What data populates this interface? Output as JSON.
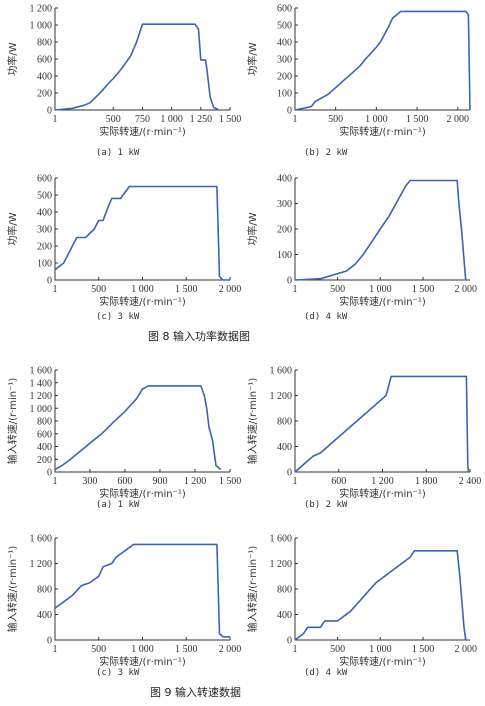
{
  "figures": [
    {
      "caption": "图 8   输入功率数据图"
    },
    {
      "caption": "图 9   输入转速数据"
    }
  ],
  "chart_data": [
    {
      "id": "f8a",
      "type": "line",
      "subcaption": "(a)  1 kW",
      "xlabel": "实际转速/(r·min⁻¹)",
      "ylabel": "功率/W",
      "xlim": [
        1,
        1500
      ],
      "ylim": [
        0,
        1200
      ],
      "xticks": [
        1,
        500,
        750,
        1000,
        1250,
        1500
      ],
      "xtick_labels": [
        "1",
        "500",
        "750",
        "1 000",
        "1 250",
        "1 500"
      ],
      "yticks": [
        0,
        200,
        400,
        600,
        800,
        1000,
        1200
      ],
      "ytick_labels": [
        "0",
        "200",
        "400",
        "600",
        "800",
        "1 000",
        "1 200"
      ],
      "color": "#3a63b8",
      "x": [
        1,
        150,
        250,
        300,
        350,
        400,
        450,
        500,
        550,
        600,
        650,
        700,
        750,
        1200,
        1230,
        1250,
        1290,
        1300,
        1330,
        1360,
        1400
      ],
      "y": [
        0,
        20,
        55,
        85,
        150,
        220,
        300,
        370,
        450,
        540,
        640,
        800,
        1010,
        1010,
        950,
        590,
        590,
        500,
        150,
        30,
        5
      ]
    },
    {
      "id": "f8b",
      "type": "line",
      "subcaption": "(b)  2 kW",
      "xlabel": "实际转速/(r·min⁻¹)",
      "ylabel": "功率/W",
      "xlim": [
        1,
        2150
      ],
      "ylim": [
        0,
        600
      ],
      "xticks": [
        1,
        500,
        1000,
        1500,
        2000
      ],
      "xtick_labels": [
        "1",
        "500",
        "1 000",
        "1 500",
        "2 000"
      ],
      "yticks": [
        0,
        100,
        200,
        300,
        400,
        500,
        600
      ],
      "ytick_labels": [
        "0",
        "100",
        "200",
        "300",
        "400",
        "500",
        "600"
      ],
      "color": "#3a63b8",
      "x": [
        1,
        200,
        250,
        400,
        450,
        600,
        650,
        800,
        850,
        1000,
        1050,
        1150,
        1200,
        1300,
        2100,
        2130,
        2150
      ],
      "y": [
        0,
        20,
        50,
        90,
        110,
        175,
        195,
        260,
        290,
        370,
        400,
        490,
        540,
        580,
        580,
        560,
        0
      ]
    },
    {
      "id": "f8c",
      "type": "line",
      "subcaption": "(c)  3 kW",
      "xlabel": "实际转速/(r·min⁻¹)",
      "ylabel": "功率/W",
      "xlim": [
        1,
        2000
      ],
      "ylim": [
        0,
        600
      ],
      "xticks": [
        1,
        500,
        1000,
        1500,
        2000
      ],
      "xtick_labels": [
        "1",
        "500",
        "1 000",
        "1 500",
        "2 000"
      ],
      "yticks": [
        0,
        100,
        200,
        300,
        400,
        500,
        600
      ],
      "ytick_labels": [
        "0",
        "100",
        "200",
        "300",
        "400",
        "500",
        "600"
      ],
      "color": "#3a63b8",
      "x": [
        1,
        100,
        200,
        250,
        350,
        450,
        500,
        550,
        600,
        650,
        700,
        750,
        850,
        900,
        1850,
        1880,
        1920,
        2000
      ],
      "y": [
        60,
        100,
        200,
        250,
        250,
        300,
        350,
        350,
        420,
        480,
        480,
        480,
        550,
        550,
        550,
        20,
        0,
        0
      ]
    },
    {
      "id": "f8d",
      "type": "line",
      "subcaption": "(d)  4 kW",
      "xlabel": "实际转速/(r·min⁻¹)",
      "ylabel": "功率/W",
      "xlim": [
        1,
        2050
      ],
      "ylim": [
        0,
        400
      ],
      "xticks": [
        1,
        500,
        1000,
        1500,
        2000
      ],
      "xtick_labels": [
        "1",
        "500",
        "1 000",
        "1 500",
        "2 000"
      ],
      "yticks": [
        0,
        100,
        200,
        300,
        400
      ],
      "ytick_labels": [
        "0",
        "100",
        "200",
        "300",
        "400"
      ],
      "color": "#3a63b8",
      "x": [
        1,
        300,
        400,
        500,
        600,
        700,
        800,
        900,
        1000,
        1100,
        1200,
        1300,
        1350,
        1900,
        1920,
        1950,
        2000
      ],
      "y": [
        0,
        5,
        15,
        25,
        35,
        60,
        100,
        150,
        200,
        250,
        310,
        370,
        390,
        390,
        300,
        200,
        0
      ]
    },
    {
      "id": "f9a",
      "type": "line",
      "subcaption": "(a)  1 kW",
      "xlabel": "实际转速/(r·min⁻¹)",
      "ylabel": "输入转速/(r·min⁻¹)",
      "xlim": [
        1,
        1500
      ],
      "ylim": [
        0,
        1600
      ],
      "xticks": [
        1,
        300,
        600,
        900,
        1200,
        1500
      ],
      "xtick_labels": [
        "1",
        "300",
        "600",
        "900",
        "1 200",
        "1 500"
      ],
      "yticks": [
        0,
        200,
        400,
        600,
        800,
        1000,
        1200,
        1400,
        1600
      ],
      "ytick_labels": [
        "0",
        "200",
        "400",
        "600",
        "800",
        "1 000",
        "1 200",
        "1 400",
        "1 600"
      ],
      "color": "#3a63b8",
      "x": [
        1,
        60,
        120,
        200,
        300,
        400,
        500,
        600,
        700,
        750,
        800,
        1250,
        1280,
        1300,
        1320,
        1350,
        1380,
        1420
      ],
      "y": [
        40,
        100,
        180,
        300,
        450,
        600,
        780,
        950,
        1150,
        1300,
        1350,
        1350,
        1200,
        1000,
        700,
        500,
        100,
        40
      ]
    },
    {
      "id": "f9b",
      "type": "line",
      "subcaption": "(b)  2 kW",
      "xlabel": "实际转速/(r·min⁻¹)",
      "ylabel": "输入转速/(r·min⁻¹)",
      "xlim": [
        1,
        2400
      ],
      "ylim": [
        0,
        1600
      ],
      "xticks": [
        1,
        600,
        1200,
        1800,
        2400
      ],
      "xtick_labels": [
        "1",
        "600",
        "1 200",
        "1 800",
        "2 400"
      ],
      "yticks": [
        0,
        400,
        800,
        1200,
        1600
      ],
      "ytick_labels": [
        "0",
        "400",
        "800",
        "1 200",
        "1 600"
      ],
      "color": "#3a63b8",
      "x": [
        1,
        150,
        250,
        350,
        450,
        550,
        650,
        750,
        850,
        950,
        1050,
        1150,
        1250,
        1320,
        2350,
        2370,
        2380
      ],
      "y": [
        0,
        150,
        250,
        300,
        400,
        500,
        600,
        700,
        800,
        900,
        1000,
        1100,
        1200,
        1500,
        1500,
        100,
        0
      ]
    },
    {
      "id": "f9c",
      "type": "line",
      "subcaption": "(c)  3 kW",
      "xlabel": "实际转速/(r·min⁻¹)",
      "ylabel": "输入转速/(r·min⁻¹)",
      "xlim": [
        1,
        2000
      ],
      "ylim": [
        0,
        1600
      ],
      "xticks": [
        1,
        500,
        1000,
        1500,
        2000
      ],
      "xtick_labels": [
        "1",
        "500",
        "1 000",
        "1 500",
        "2 000"
      ],
      "yticks": [
        0,
        400,
        800,
        1200,
        1600
      ],
      "ytick_labels": [
        "0",
        "400",
        "800",
        "1 200",
        "1 600"
      ],
      "color": "#3a63b8",
      "x": [
        1,
        100,
        200,
        300,
        400,
        500,
        550,
        650,
        700,
        800,
        900,
        1850,
        1880,
        1920,
        2000
      ],
      "y": [
        500,
        600,
        700,
        850,
        900,
        1000,
        1150,
        1200,
        1300,
        1400,
        1500,
        1500,
        100,
        50,
        50
      ]
    },
    {
      "id": "f9d",
      "type": "line",
      "subcaption": "(d)  4 kW",
      "xlabel": "实际转速/(r·min⁻¹)",
      "ylabel": "输入转速/(r·min⁻¹)",
      "xlim": [
        1,
        2050
      ],
      "ylim": [
        0,
        1600
      ],
      "xticks": [
        1,
        500,
        1000,
        1500,
        2000
      ],
      "xtick_labels": [
        "1",
        "500",
        "1 000",
        "1 500",
        "2 000"
      ],
      "yticks": [
        0,
        400,
        800,
        1200,
        1600
      ],
      "ytick_labels": [
        "0",
        "400",
        "800",
        "1 200",
        "1 600"
      ],
      "color": "#3a63b8",
      "x": [
        1,
        100,
        150,
        300,
        350,
        500,
        550,
        650,
        750,
        850,
        950,
        1050,
        1150,
        1250,
        1350,
        1400,
        1900,
        1930,
        1980,
        2000
      ],
      "y": [
        0,
        100,
        200,
        200,
        300,
        300,
        350,
        450,
        600,
        750,
        900,
        1000,
        1100,
        1200,
        1300,
        1400,
        1400,
        1000,
        200,
        0
      ]
    }
  ]
}
